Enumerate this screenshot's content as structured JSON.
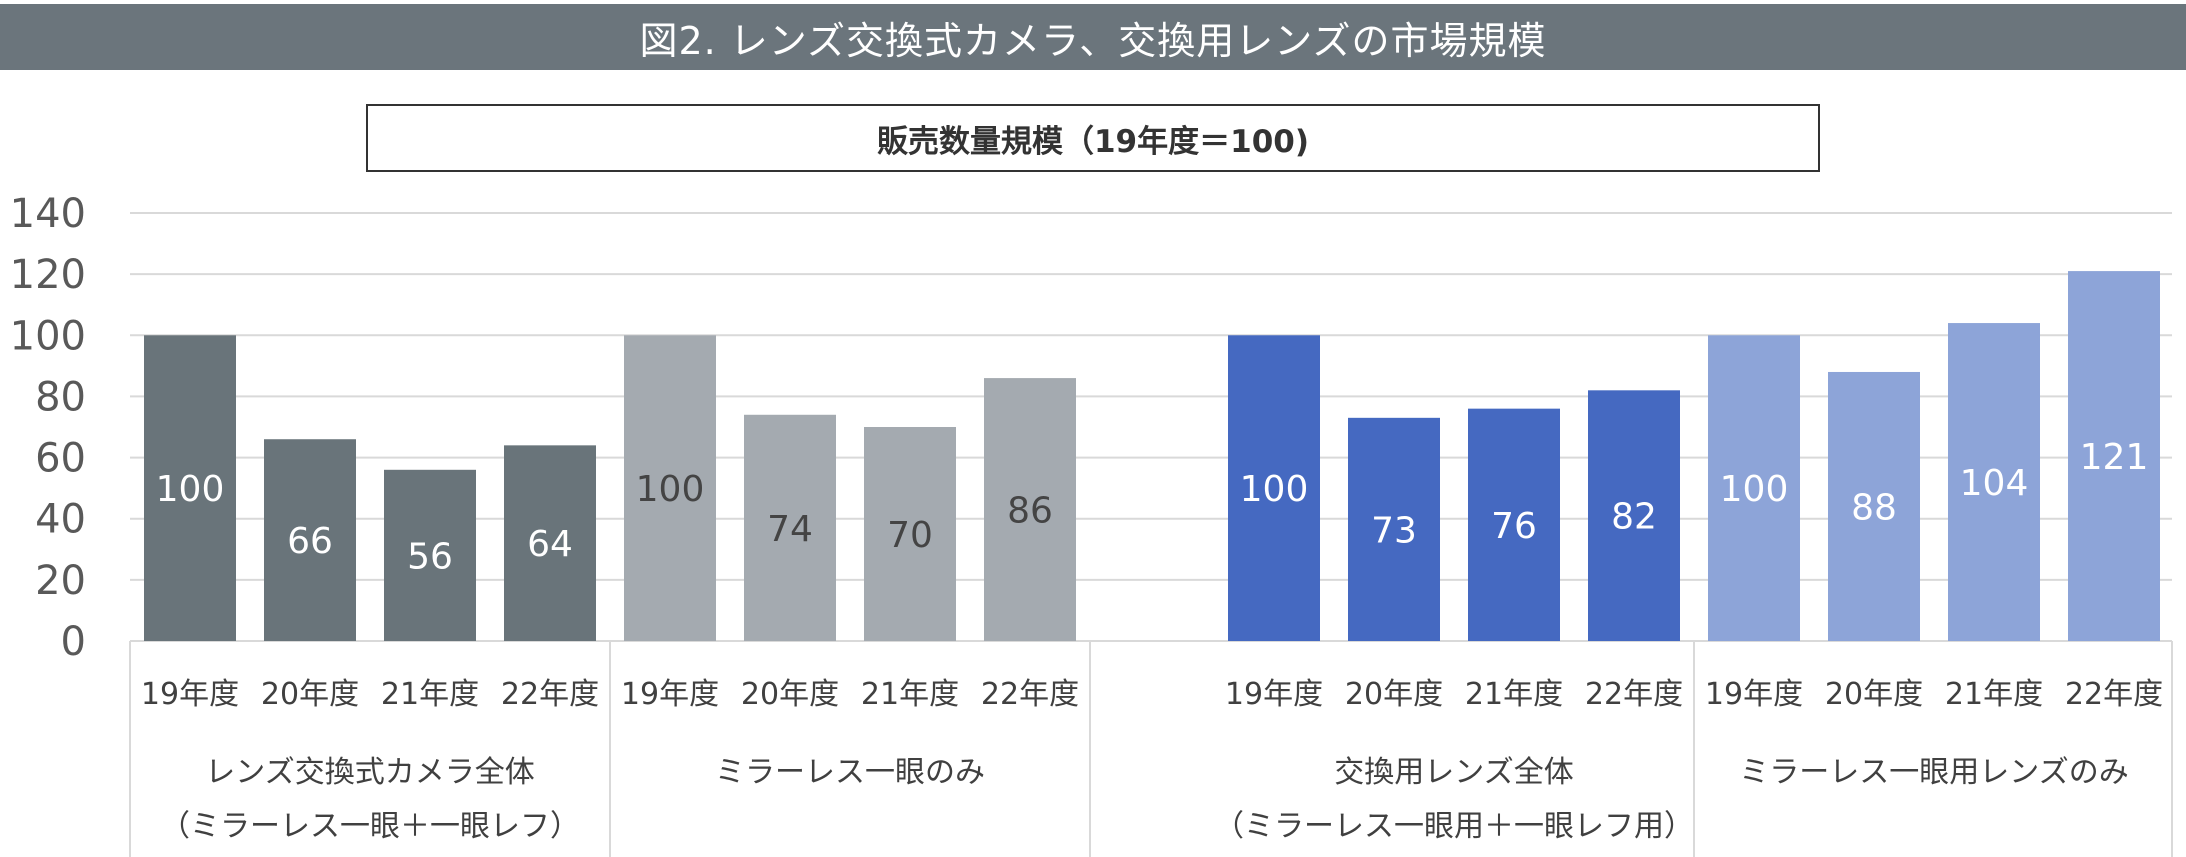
{
  "title": "図2. レンズ交換式カメラ、交換用レンズの市場規模",
  "chart_data": {
    "type": "bar",
    "title": "販売数量規模（19年度＝100)",
    "ylim": [
      0,
      140
    ],
    "yticks": [
      0,
      20,
      40,
      60,
      80,
      100,
      120,
      140
    ],
    "grid": true,
    "categories": [
      "19年度",
      "20年度",
      "21年度",
      "22年度"
    ],
    "groups": [
      {
        "label_lines": [
          "レンズ交換式カメラ全体",
          "（ミラーレス一眼＋一眼レフ）"
        ],
        "values": [
          100,
          66,
          56,
          64
        ],
        "color": "#69747a",
        "label_color": "#ffffff"
      },
      {
        "label_lines": [
          "ミラーレス一眼のみ"
        ],
        "values": [
          100,
          74,
          70,
          86
        ],
        "color": "#a4aab0",
        "label_color": "#444444"
      },
      {
        "label_lines": [
          "交換用レンズ全体",
          "（ミラーレス一眼用＋一眼レフ用）"
        ],
        "values": [
          100,
          73,
          76,
          82
        ],
        "color": "#4569c1",
        "label_color": "#ffffff"
      },
      {
        "label_lines": [
          "ミラーレス一眼用レンズのみ"
        ],
        "values": [
          100,
          88,
          104,
          121
        ],
        "color": "#8da4d8",
        "label_color": "#ffffff"
      }
    ]
  }
}
